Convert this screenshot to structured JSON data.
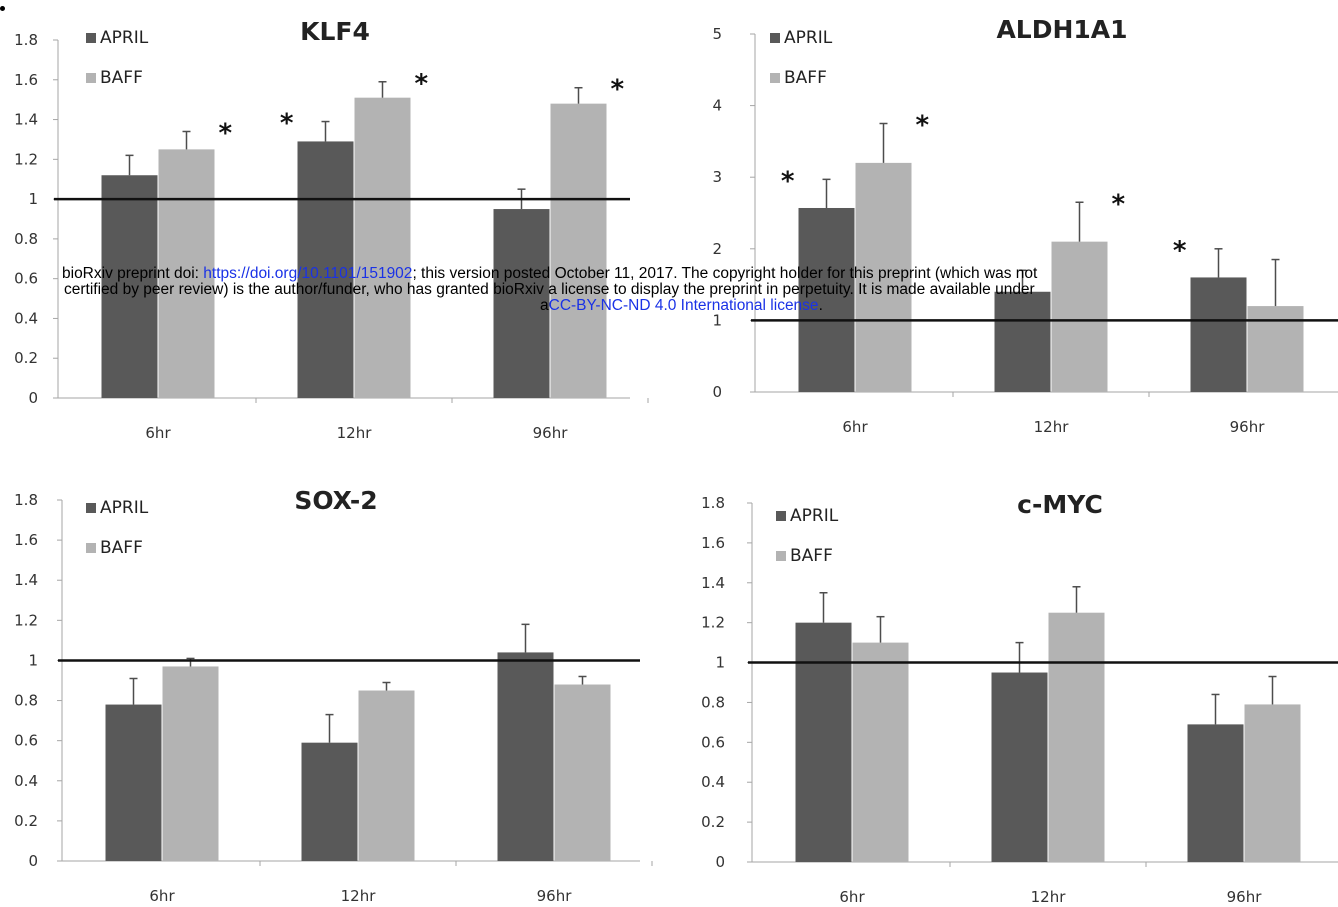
{
  "chart_data": [
    {
      "type": "bar",
      "title": "KLF4",
      "categories": [
        "6hr",
        "12hr",
        "96hr"
      ],
      "yticks": [
        "0",
        "0.2",
        "0.4",
        "0.6",
        "0.8",
        "1",
        "1.2",
        "1.4",
        "1.6",
        "1.8"
      ],
      "ylim": [
        0,
        1.8
      ],
      "reference_line": 1,
      "legend_position": "top-left",
      "series": [
        {
          "name": "APRIL",
          "color": "#595959",
          "values": [
            1.12,
            1.29,
            0.95
          ],
          "errors": [
            0.1,
            0.1,
            0.1
          ],
          "significant": [
            false,
            true,
            false
          ]
        },
        {
          "name": "BAFF",
          "color": "#b3b3b3",
          "values": [
            1.25,
            1.51,
            1.48
          ],
          "errors": [
            0.09,
            0.08,
            0.08
          ],
          "significant": [
            true,
            true,
            true
          ]
        }
      ]
    },
    {
      "type": "bar",
      "title": "ALDH1A1",
      "categories": [
        "6hr",
        "12hr",
        "96hr"
      ],
      "yticks": [
        "0",
        "1",
        "2",
        "3",
        "4",
        "5"
      ],
      "ylim": [
        0,
        5
      ],
      "reference_line": 1,
      "legend_position": "top-left",
      "series": [
        {
          "name": "APRIL",
          "color": "#595959",
          "values": [
            2.57,
            1.4,
            1.6
          ],
          "errors": [
            0.4,
            0.3,
            0.4
          ],
          "significant": [
            true,
            false,
            true
          ]
        },
        {
          "name": "BAFF",
          "color": "#b3b3b3",
          "values": [
            3.2,
            2.1,
            1.2
          ],
          "errors": [
            0.55,
            0.55,
            0.65
          ],
          "significant": [
            true,
            true,
            false
          ]
        }
      ]
    },
    {
      "type": "bar",
      "title": "SOX-2",
      "categories": [
        "6hr",
        "12hr",
        "96hr"
      ],
      "yticks": [
        "0",
        "0.2",
        "0.4",
        "0.6",
        "0.8",
        "1",
        "1.2",
        "1.4",
        "1.6",
        "1.8"
      ],
      "ylim": [
        0,
        1.8
      ],
      "reference_line": 1,
      "legend_position": "top-left",
      "series": [
        {
          "name": "APRIL",
          "color": "#595959",
          "values": [
            0.78,
            0.59,
            1.04
          ],
          "errors": [
            0.13,
            0.14,
            0.14
          ],
          "significant": [
            false,
            false,
            false
          ]
        },
        {
          "name": "BAFF",
          "color": "#b3b3b3",
          "values": [
            0.97,
            0.85,
            0.88
          ],
          "errors": [
            0.04,
            0.04,
            0.04
          ],
          "significant": [
            false,
            false,
            false
          ]
        }
      ]
    },
    {
      "type": "bar",
      "title": "c-MYC",
      "categories": [
        "6hr",
        "12hr",
        "96hr"
      ],
      "yticks": [
        "0",
        "0.2",
        "0.4",
        "0.6",
        "0.8",
        "1",
        "1.2",
        "1.4",
        "1.6",
        "1.8"
      ],
      "ylim": [
        0,
        1.8
      ],
      "reference_line": 1,
      "legend_position": "top-left",
      "series": [
        {
          "name": "APRIL",
          "color": "#595959",
          "values": [
            1.2,
            0.95,
            0.69
          ],
          "errors": [
            0.15,
            0.15,
            0.15
          ],
          "significant": [
            false,
            false,
            false
          ]
        },
        {
          "name": "BAFF",
          "color": "#b3b3b3",
          "values": [
            1.1,
            1.25,
            0.79
          ],
          "errors": [
            0.13,
            0.13,
            0.14
          ],
          "significant": [
            false,
            false,
            false
          ]
        }
      ]
    }
  ],
  "watermark": {
    "line1_pre": "bioRxiv preprint doi: ",
    "line1_link": "https://doi.org/10.1101/151902",
    "line1_post": "; this version posted October 11, 2017. The copyright holder for this preprint (which was not",
    "line2": "certified by peer review) is the author/funder, who has granted bioRxiv a license to display the preprint in perpetuity. It is made available under",
    "line3_pre": "a",
    "line3_link": "CC-BY-NC-ND 4.0 International license",
    "line3_post": "."
  },
  "star_symbol": "*"
}
